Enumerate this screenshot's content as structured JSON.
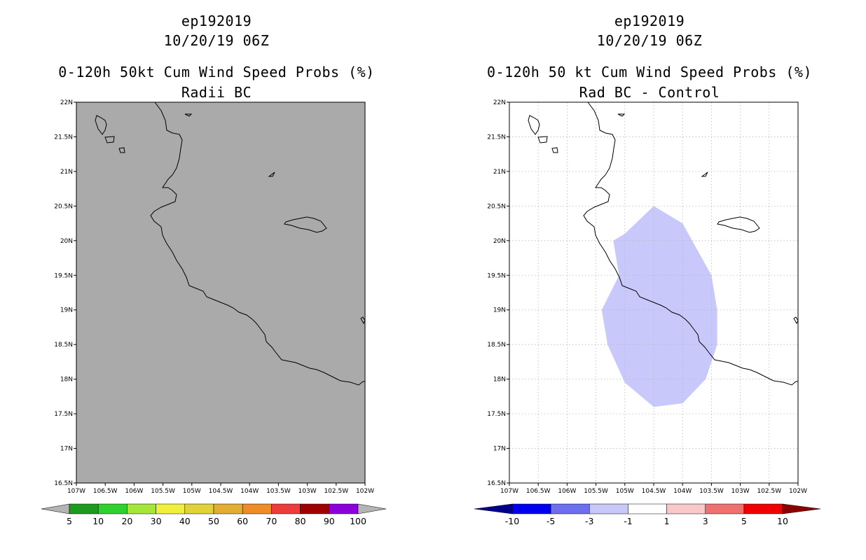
{
  "lat_labels": [
    "22N",
    "21.5N",
    "21N",
    "20.5N",
    "20N",
    "19.5N",
    "19N",
    "18.5N",
    "18N",
    "17.5N",
    "17N",
    "16.5N"
  ],
  "lon_labels": [
    "107W",
    "106.5W",
    "106W",
    "105.5W",
    "105W",
    "104.5W",
    "104W",
    "103.5W",
    "103W",
    "102.5W",
    "102W"
  ],
  "left": {
    "storm": "ep192019",
    "datetime": "10/20/19 06Z",
    "product": "0-120h 50kt Cum Wind Speed Probs (%)",
    "subtitle": "Radii BC",
    "background_color": "#aaaaaa",
    "colorbar": {
      "colors": [
        "#1e9a1e",
        "#2fd12f",
        "#a4e63a",
        "#f0f03c",
        "#e2d23a",
        "#e2ad32",
        "#ee8c28",
        "#ee3c3c",
        "#a00000",
        "#8c00dc"
      ],
      "end_color": "#b4b4b4",
      "labels": [
        "5",
        "10",
        "20",
        "30",
        "40",
        "50",
        "60",
        "70",
        "80",
        "90",
        "100"
      ]
    }
  },
  "right": {
    "storm": "ep192019",
    "datetime": "10/20/19 06Z",
    "product": "0-120h 50 kt Cum Wind Speed Probs (%)",
    "subtitle": "Rad BC - Control",
    "background_color": "#ffffff",
    "shading_color": "#c8c8fa",
    "colorbar": {
      "colors": [
        "#0000f0",
        "#6e6ef0",
        "#c8c8fa",
        "#ffffff",
        "#fac8c8",
        "#f07070",
        "#f00000"
      ],
      "low_color": "#00008c",
      "high_color": "#8c0000",
      "labels": [
        "-10",
        "-5",
        "-3",
        "-1",
        "1",
        "3",
        "5",
        "10"
      ]
    }
  }
}
